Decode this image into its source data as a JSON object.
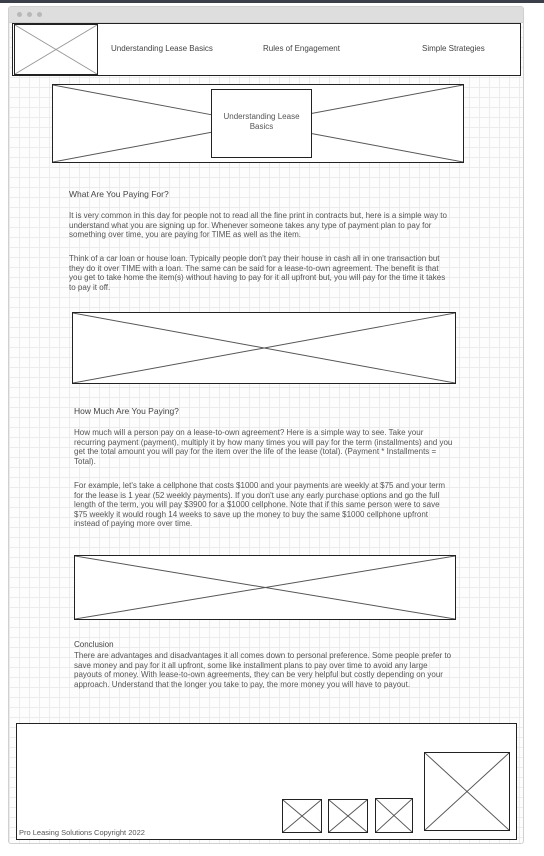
{
  "nav": {
    "links": [
      "Understanding Lease Basics",
      "Rules of Engagement",
      "Simple Strategies"
    ]
  },
  "hero": {
    "label": "Understanding Lease Basics"
  },
  "sections": {
    "paying_for": {
      "heading": "What Are You Paying For?",
      "p1": "It is very common in this day for people not to read all the fine print in contracts but, here is a simple way to understand what you are signing up for. Whenever someone takes any type of payment plan to pay for something over time, you are paying for TIME as well as the item.",
      "p2": "Think of a car loan or house loan. Typically people don't pay their house in cash all in one transaction but they do it over TIME with a loan. The same can be said for a lease-to-own agreement. The benefit is that you get to take home the item(s) without having to pay for it all upfront but, you will pay for the time it takes to pay it off."
    },
    "how_much": {
      "heading": "How Much Are You Paying?",
      "p1": "How much will a person pay on a lease-to-own agreement? Here is a simple way to see. Take your recurring payment (payment), multiply it by how many times you will pay for the term (installments) and you get the total amount you will pay for the item over the life of the lease (total). (Payment * Installments = Total).",
      "p2": "For example, let's take a cellphone that costs $1000 and your payments are weekly at $75 and your term for the lease is 1 year (52 weekly payments). If you don't use any early purchase options and go the full length of the term, you will pay $3900 for a $1000 cellphone. Note that if this same person were to save $75 weekly it would rough 14 weeks to save up the money to buy the same $1000 cellphone upfront instead of paying more over time."
    },
    "conclusion": {
      "heading": "Conclusion",
      "p1": "There are advantages and disadvantages it all comes down to personal preference. Some people prefer to save money and pay for it all upfront, some like installment plans to pay over time to avoid any large payouts of money. With lease-to-own agreements, they can be very helpful but costly depending on your approach.  Understand that the longer you take to pay, the more money you will have to payout."
    }
  },
  "footer": {
    "copyright": "Pro Leasing Solutions  Copyright 2022"
  }
}
